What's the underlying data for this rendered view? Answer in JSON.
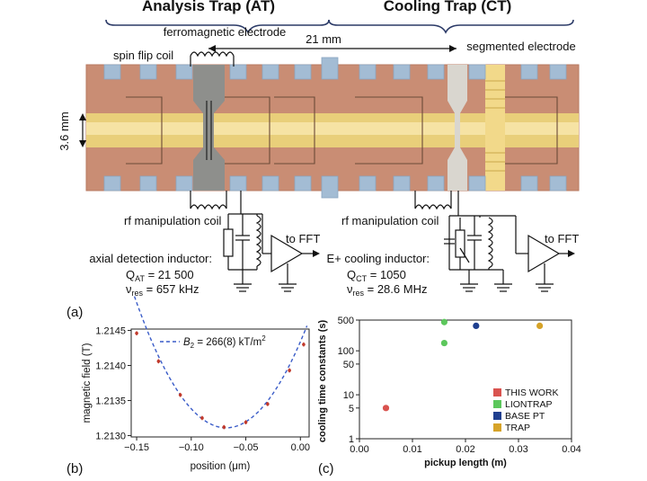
{
  "figure": {
    "headers": {
      "at": "Analysis Trap (AT)",
      "ct": "Cooling Trap (CT)"
    },
    "labels": {
      "ferromagnetic": "ferromagnetic electrode",
      "distance": "21 mm",
      "spin_flip": "spin flip coil",
      "segmented": "segmented electrode",
      "diameter": "3.6 mm",
      "rf_left": "rf manipulation coil",
      "rf_right": "rf manipulation coil",
      "fft_left": "to FFT",
      "fft_right": "to FFT",
      "axial_title": "axial detection inductor:",
      "axial_q_sym": "Q",
      "axial_q_sub": "AT",
      "axial_q_val": " = 21 500",
      "axial_nu_sym": "ν",
      "axial_nu_sub": "res",
      "axial_nu_val": " = 657 kHz",
      "cool_title": "E+ cooling inductor:",
      "cool_q_sym": "Q",
      "cool_q_sub": "CT",
      "cool_q_val": " = 1050",
      "cool_nu_sym": "ν",
      "cool_nu_sub": "res",
      "cool_nu_val": " = 28.6 MHz"
    },
    "panels": {
      "a": "(a)",
      "b": "(b)",
      "c": "(c)"
    },
    "colors": {
      "copper": "#c98d74",
      "gold": "#e9cf7a",
      "grey_blue": "#a3bcd4",
      "ferro": "#8e8f8c",
      "brace": "#2b3a67"
    }
  },
  "chart_data": [
    {
      "type": "scatter",
      "panel": "(b)",
      "xlabel": "position (μm)",
      "ylabel": "magnetic field (T)",
      "xlim": [
        -0.155,
        0.008
      ],
      "ylim": [
        1.21298,
        1.21452
      ],
      "xticks": [
        -0.15,
        -0.1,
        -0.05,
        0.0
      ],
      "xtick_labels": [
        "−0.15",
        "−0.10",
        "−0.05",
        "0.00"
      ],
      "yticks": [
        1.213,
        1.2135,
        1.214,
        1.2145
      ],
      "ytick_labels": [
        "1.2130",
        "1.2135",
        "1.2140",
        "1.2145"
      ],
      "legend": "B2 = 266(8) kT/m2",
      "legend_parts": {
        "sym": "B",
        "sub": "2",
        "val": " = 266(8) kT/m",
        "sup": "2"
      },
      "fit": {
        "x0": -0.068,
        "y0": 1.21311,
        "b2_T_per_unit2": 0.266
      },
      "points": [
        {
          "x": -0.15,
          "y": 1.21446,
          "err": 3e-05
        },
        {
          "x": -0.13,
          "y": 1.21406,
          "err": 3e-05
        },
        {
          "x": -0.11,
          "y": 1.21358,
          "err": 3e-05
        },
        {
          "x": -0.09,
          "y": 1.21325,
          "err": 3e-05
        },
        {
          "x": -0.07,
          "y": 1.21312,
          "err": 3e-05
        },
        {
          "x": -0.05,
          "y": 1.21319,
          "err": 3e-05
        },
        {
          "x": -0.03,
          "y": 1.21345,
          "err": 3e-05
        },
        {
          "x": -0.01,
          "y": 1.21393,
          "err": 3e-05
        },
        {
          "x": 0.003,
          "y": 1.2143,
          "err": 3e-05
        }
      ]
    },
    {
      "type": "scatter",
      "panel": "(c)",
      "xlabel": "pickup length (m)",
      "ylabel": "cooling time constants (s)",
      "xlim": [
        0.0,
        0.04
      ],
      "ylim": [
        1,
        500
      ],
      "log_y": true,
      "xticks": [
        0.0,
        0.01,
        0.02,
        0.03,
        0.04
      ],
      "xtick_labels": [
        "0.00",
        "0.01",
        "0.02",
        "0.03",
        "0.04"
      ],
      "yticks": [
        1,
        5,
        10,
        50,
        100,
        500
      ],
      "ytick_labels": [
        "1",
        "5",
        "10",
        "50",
        "100",
        "500"
      ],
      "legend_location": "lower-right",
      "series": [
        {
          "name": "THIS WORK",
          "color": "#d9534f",
          "points": [
            {
              "x": 0.005,
              "y": 5
            }
          ]
        },
        {
          "name": "LIONTRAP",
          "color": "#5cc75c",
          "points": [
            {
              "x": 0.016,
              "y": 450
            },
            {
              "x": 0.016,
              "y": 150
            }
          ]
        },
        {
          "name": "BASE PT",
          "color": "#1f3f8f",
          "points": [
            {
              "x": 0.022,
              "y": 370
            }
          ]
        },
        {
          "name": "TRAP",
          "color": "#d6a328",
          "points": [
            {
              "x": 0.034,
              "y": 370
            }
          ]
        }
      ]
    }
  ]
}
